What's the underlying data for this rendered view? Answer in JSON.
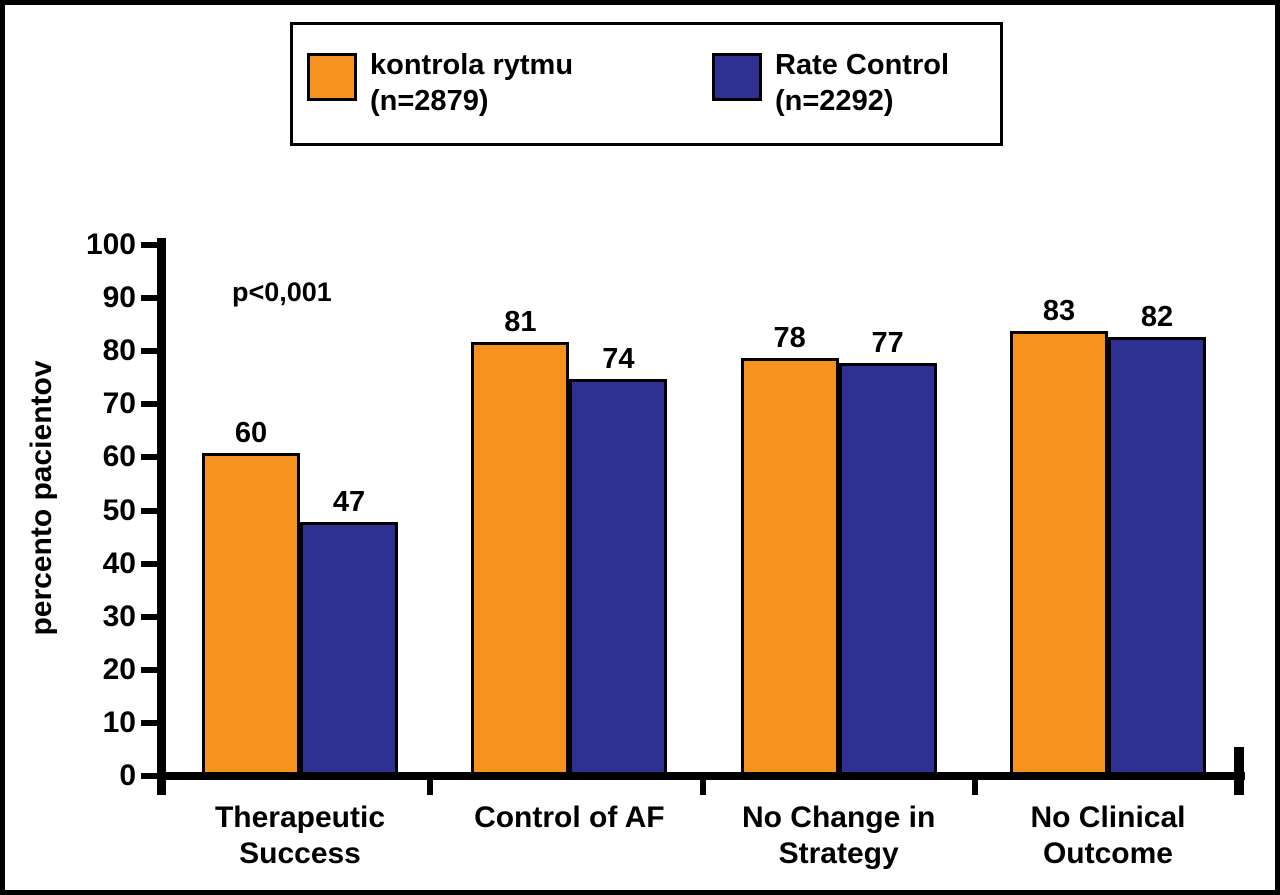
{
  "figure": {
    "background": "#FFFFFF",
    "frame_color": "#000000"
  },
  "legend": {
    "entries": [
      {
        "label": "kontrola rytmu",
        "sub": "(n=2879)",
        "color": "#F6921E"
      },
      {
        "label": "Rate Control",
        "sub": "(n=2292)",
        "color": "#2E3192"
      }
    ]
  },
  "annotation": {
    "text": "p<0,001"
  },
  "chart_data": {
    "type": "bar",
    "title": "",
    "categories": [
      "Therapeutic Success",
      "Control of AF",
      "No Change in Strategy",
      "No Clinical Outcome"
    ],
    "category_label_lines": [
      [
        "Therapeutic",
        "Success"
      ],
      [
        "Control of AF"
      ],
      [
        "No Change in",
        "Strategy"
      ],
      [
        "No Clinical",
        "Outcome"
      ]
    ],
    "series": [
      {
        "name": "kontrola rytmu (n=2879)",
        "color": "#F6921E",
        "values": [
          60,
          81,
          78,
          83
        ]
      },
      {
        "name": "Rate Control (n=2292)",
        "color": "#2E3192",
        "values": [
          47,
          74,
          77,
          82
        ]
      }
    ],
    "ylabel": "percento pacientov",
    "xlabel": "",
    "ylim": [
      0,
      100
    ],
    "yticks": [
      0,
      10,
      20,
      30,
      40,
      50,
      60,
      70,
      80,
      90,
      100
    ],
    "grid": false,
    "legend_position": "top-center",
    "bar_value_labels": true,
    "annotations": [
      {
        "text": "p<0,001",
        "x_category": "Therapeutic Success",
        "y": 90
      }
    ]
  }
}
